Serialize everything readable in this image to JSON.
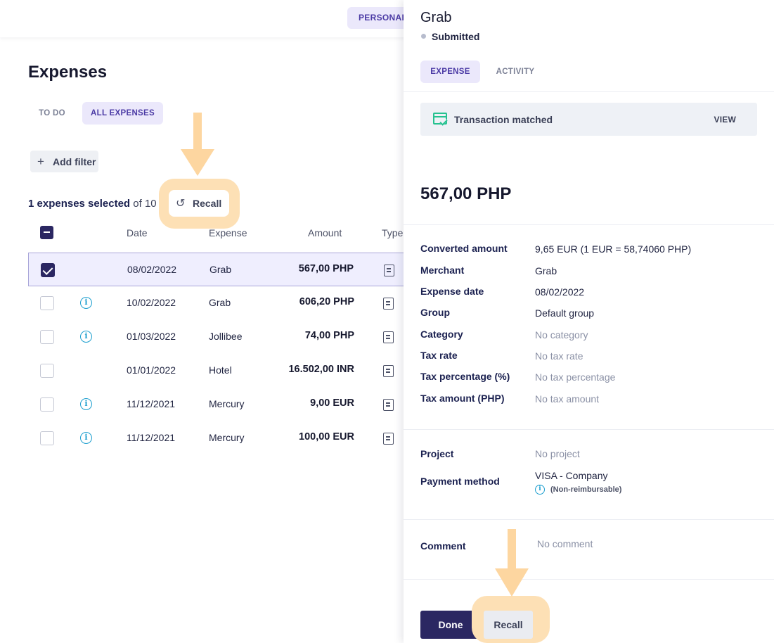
{
  "topbar": {
    "personal_tab": "PERSONAL"
  },
  "page": {
    "title": "Expenses",
    "tabs": [
      "TO DO",
      "ALL EXPENSES"
    ],
    "add_filter": "Add filter",
    "selection": {
      "count_text": "1 expenses selected",
      "of_text": "of 10"
    },
    "recall_label": "Recall"
  },
  "table": {
    "headers": {
      "date": "Date",
      "expense": "Expense",
      "amount": "Amount",
      "type": "Type"
    },
    "rows": [
      {
        "date": "08/02/2022",
        "expense": "Grab",
        "amount": "567,00 PHP",
        "checked": true,
        "info": false
      },
      {
        "date": "10/02/2022",
        "expense": "Grab",
        "amount": "606,20 PHP",
        "checked": false,
        "info": true
      },
      {
        "date": "01/03/2022",
        "expense": "Jollibee",
        "amount": "74,00 PHP",
        "checked": false,
        "info": true
      },
      {
        "date": "01/01/2022",
        "expense": "Hotel",
        "amount": "16.502,00 INR",
        "checked": false,
        "info": false
      },
      {
        "date": "11/12/2021",
        "expense": "Mercury",
        "amount": "9,00 EUR",
        "checked": false,
        "info": true
      },
      {
        "date": "11/12/2021",
        "expense": "Mercury",
        "amount": "100,00 EUR",
        "checked": false,
        "info": true
      }
    ]
  },
  "panel": {
    "title": "Grab",
    "status": "Submitted",
    "tabs": [
      "EXPENSE",
      "ACTIVITY"
    ],
    "match": {
      "text": "Transaction matched",
      "view": "VIEW"
    },
    "amount": "567,00 PHP",
    "details": [
      {
        "label": "Converted amount",
        "value": "9,65 EUR (1 EUR = 58,74060 PHP)"
      },
      {
        "label": "Merchant",
        "value": "Grab"
      },
      {
        "label": "Expense date",
        "value": "08/02/2022"
      },
      {
        "label": "Group",
        "value": "Default group"
      },
      {
        "label": "Category",
        "value": "No category"
      },
      {
        "label": "Tax rate",
        "value": "No tax rate"
      },
      {
        "label": "Tax percentage (%)",
        "value": "No tax percentage"
      },
      {
        "label": "Tax amount (PHP)",
        "value": "No tax amount"
      }
    ],
    "project": {
      "label": "Project",
      "value": "No project"
    },
    "payment": {
      "label": "Payment method",
      "value": "VISA - Company",
      "note": "(Non-reimbursable)"
    },
    "comment": {
      "label": "Comment",
      "value": "No comment"
    },
    "buttons": {
      "done": "Done",
      "recall": "Recall"
    }
  },
  "colors": {
    "accent": "#2b2762",
    "tab_active_bg": "#ebe8fb",
    "highlight": "#fde0b5",
    "info": "#1e9fcf",
    "match": "#25c290"
  }
}
